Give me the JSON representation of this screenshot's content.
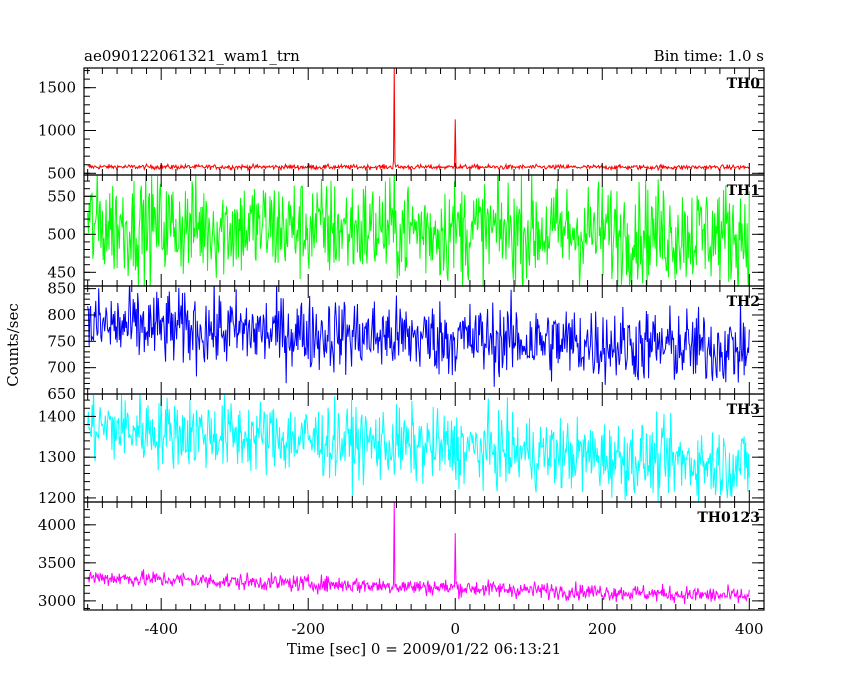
{
  "chart_data": {
    "type": "line",
    "title": "ae090122061321_wam1_trn",
    "bin_time": "Bin time: 1.0 s",
    "xlabel": "Time [sec] 0 = 2009/01/22 06:13:21",
    "ylabel": "Counts/sec",
    "xlim": [
      -505,
      420
    ],
    "x_range": [
      -500,
      400
    ],
    "x_ticks": [
      -400,
      -200,
      0,
      200,
      400
    ],
    "grid": false,
    "panels": [
      {
        "name": "TH0",
        "color": "#ff0000",
        "ylim": [
          480,
          1730
        ],
        "y_ticks": [
          500,
          1000,
          1500
        ],
        "baseline": 575,
        "baseline_end": 570,
        "noise": 14,
        "spikes": [
          {
            "x": -83,
            "value": 1730
          },
          {
            "x": 0,
            "value": 1130
          }
        ]
      },
      {
        "name": "TH1",
        "color": "#00ff00",
        "ylim": [
          432,
          578
        ],
        "y_ticks": [
          450,
          500,
          550
        ],
        "baseline": 512,
        "baseline_end": 500,
        "noise": 34,
        "spikes": []
      },
      {
        "name": "TH2",
        "color": "#0000ff",
        "ylim": [
          650,
          855
        ],
        "y_ticks": [
          650,
          700,
          750,
          800,
          850
        ],
        "baseline": 780,
        "baseline_end": 735,
        "noise": 36,
        "spikes": []
      },
      {
        "name": "TH3",
        "color": "#00ffff",
        "ylim": [
          1190,
          1455
        ],
        "y_ticks": [
          1200,
          1300,
          1400
        ],
        "baseline": 1375,
        "baseline_end": 1280,
        "noise": 45,
        "spikes": []
      },
      {
        "name": "TH0123",
        "color": "#ff00ff",
        "ylim": [
          2880,
          4300
        ],
        "y_ticks": [
          3000,
          3500,
          4000
        ],
        "baseline": 3310,
        "baseline_end": 3060,
        "noise": 55,
        "spikes": [
          {
            "x": -83,
            "value": 4300
          },
          {
            "x": 0,
            "value": 3890
          }
        ]
      }
    ]
  }
}
